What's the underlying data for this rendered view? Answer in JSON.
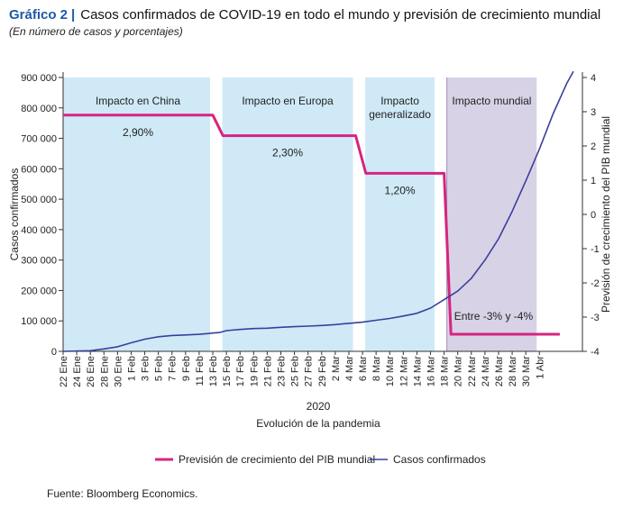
{
  "header": {
    "label": "Gráfico 2",
    "separator": "|",
    "title": "Casos confirmados de COVID-19 en todo el mundo y previsión de crecimiento mundial",
    "subtitle": "(En número de casos y porcentajes)"
  },
  "footer": {
    "source": "Fuente: Bloomberg Economics."
  },
  "colors": {
    "band_light": "#cfe9f7",
    "band_global": "#d8d2e6",
    "gdp_line": "#d6247f",
    "cases_line": "#3a3f9a"
  },
  "chart_data": {
    "type": "line",
    "x_axis": {
      "label": "Evolución de la pandemia",
      "year_label": "2020",
      "tick_labels": [
        "22 Ene",
        "24 Ene",
        "26 Ene",
        "28 Ene",
        "30 Ene",
        "1 Feb",
        "3 Feb",
        "5 Feb",
        "7 Feb",
        "9 Feb",
        "11 Feb",
        "13 Feb",
        "15 Feb",
        "17 Feb",
        "19 Feb",
        "21 Feb",
        "23 Feb",
        "25 Feb",
        "27 Feb",
        "29 Feb",
        "2 Mar",
        "4 Mar",
        "6 Mar",
        "8 Mar",
        "10 Mar",
        "12 Mar",
        "14 Mar",
        "16 Mar",
        "18 Mar",
        "20 Mar",
        "22 Mar",
        "24 Mar",
        "26 Mar",
        "28 Mar",
        "30 Mar",
        "1 Abr"
      ]
    },
    "y_left": {
      "label": "Casos confirmados",
      "range": [
        0,
        900000
      ],
      "ticks": [
        0,
        100000,
        200000,
        300000,
        400000,
        500000,
        600000,
        700000,
        800000,
        900000
      ],
      "tick_labels": [
        "0",
        "100 000",
        "200 000",
        "300 000",
        "400 000",
        "500 000",
        "600 000",
        "700 000",
        "800 000",
        "900 000"
      ]
    },
    "y_right": {
      "label": "Previsión de crecimiento del PIB mundial",
      "range": [
        -4,
        4
      ],
      "ticks": [
        -4,
        -3,
        -2,
        -1,
        0,
        1,
        2,
        3,
        4
      ],
      "tick_labels": [
        "-4",
        "-3",
        "-2",
        "-1",
        "0",
        "1",
        "2",
        "3",
        "4"
      ]
    },
    "phases": [
      {
        "label_lines": [
          "Impacto en China"
        ],
        "start_day": 0,
        "end_day": 22,
        "kind": "light",
        "value_label": "2,90%"
      },
      {
        "label_lines": [
          "Impacto en Europa"
        ],
        "start_day": 23,
        "end_day": 43,
        "kind": "light",
        "value_label": "2,30%"
      },
      {
        "label_lines": [
          "Impacto",
          "generalizado"
        ],
        "start_day": 44,
        "end_day": 55,
        "kind": "light",
        "value_label": "1,20%"
      },
      {
        "label_lines": [
          "Impacto mundial"
        ],
        "start_day": 56,
        "end_day": 70,
        "kind": "global",
        "value_label": "Entre -3% y -4%"
      }
    ],
    "series": [
      {
        "name": "Previsión de crecimiento del PIB mundial",
        "axis": "right",
        "points": [
          [
            0,
            2.9
          ],
          [
            22,
            2.9
          ],
          [
            23.5,
            2.3
          ],
          [
            43,
            2.3
          ],
          [
            44.5,
            1.2
          ],
          [
            56,
            1.2
          ],
          [
            57,
            -3.5
          ],
          [
            73,
            -3.5
          ]
        ]
      },
      {
        "name": "Casos confirmados",
        "axis": "left",
        "points": [
          [
            0,
            0
          ],
          [
            4,
            2000
          ],
          [
            6,
            8000
          ],
          [
            8,
            15000
          ],
          [
            10,
            28000
          ],
          [
            12,
            40000
          ],
          [
            14,
            48000
          ],
          [
            16,
            52000
          ],
          [
            18,
            54000
          ],
          [
            20,
            56000
          ],
          [
            21,
            58000
          ],
          [
            22,
            60000
          ],
          [
            23,
            62000
          ],
          [
            24,
            68000
          ],
          [
            26,
            72000
          ],
          [
            28,
            75000
          ],
          [
            30,
            76000
          ],
          [
            32,
            79000
          ],
          [
            34,
            81000
          ],
          [
            36,
            83000
          ],
          [
            38,
            85000
          ],
          [
            40,
            88000
          ],
          [
            42,
            92000
          ],
          [
            44,
            96000
          ],
          [
            46,
            102000
          ],
          [
            48,
            108000
          ],
          [
            50,
            116000
          ],
          [
            52,
            125000
          ],
          [
            54,
            142000
          ],
          [
            56,
            170000
          ],
          [
            58,
            198000
          ],
          [
            60,
            240000
          ],
          [
            62,
            300000
          ],
          [
            64,
            370000
          ],
          [
            66,
            460000
          ],
          [
            68,
            560000
          ],
          [
            70,
            665000
          ],
          [
            72,
            780000
          ],
          [
            74,
            880000
          ],
          [
            75,
            920000
          ]
        ]
      }
    ]
  }
}
